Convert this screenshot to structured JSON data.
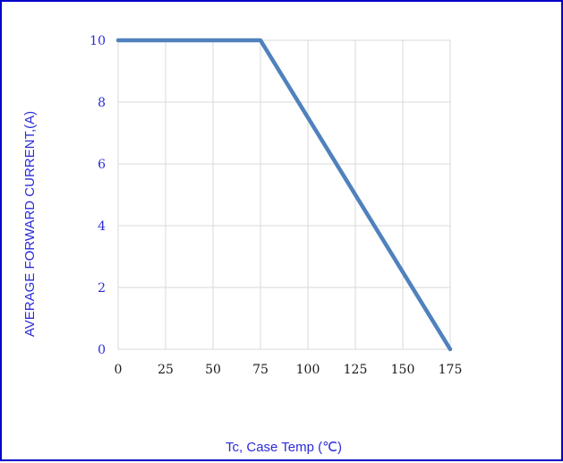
{
  "colors": {
    "border": "#0000c8",
    "axis_text": "#2b2bd9",
    "grid": "#d9d9d9",
    "series": "#4f81bd",
    "tick_label": "#1a1a1a"
  },
  "chart_data": {
    "type": "line",
    "title": "",
    "xlabel": "Tc, Case Temp (℃)",
    "ylabel": "AVERAGE FORWARD CURRENT,(A)",
    "xlim": [
      0,
      175
    ],
    "ylim": [
      0,
      10
    ],
    "x_ticks": [
      0,
      25,
      50,
      75,
      100,
      125,
      150,
      175
    ],
    "y_ticks": [
      0,
      2,
      4,
      6,
      8,
      10
    ],
    "grid": true,
    "legend": "none",
    "series": [
      {
        "x": [
          0,
          75,
          175
        ],
        "y": [
          10,
          10,
          0
        ]
      }
    ]
  }
}
